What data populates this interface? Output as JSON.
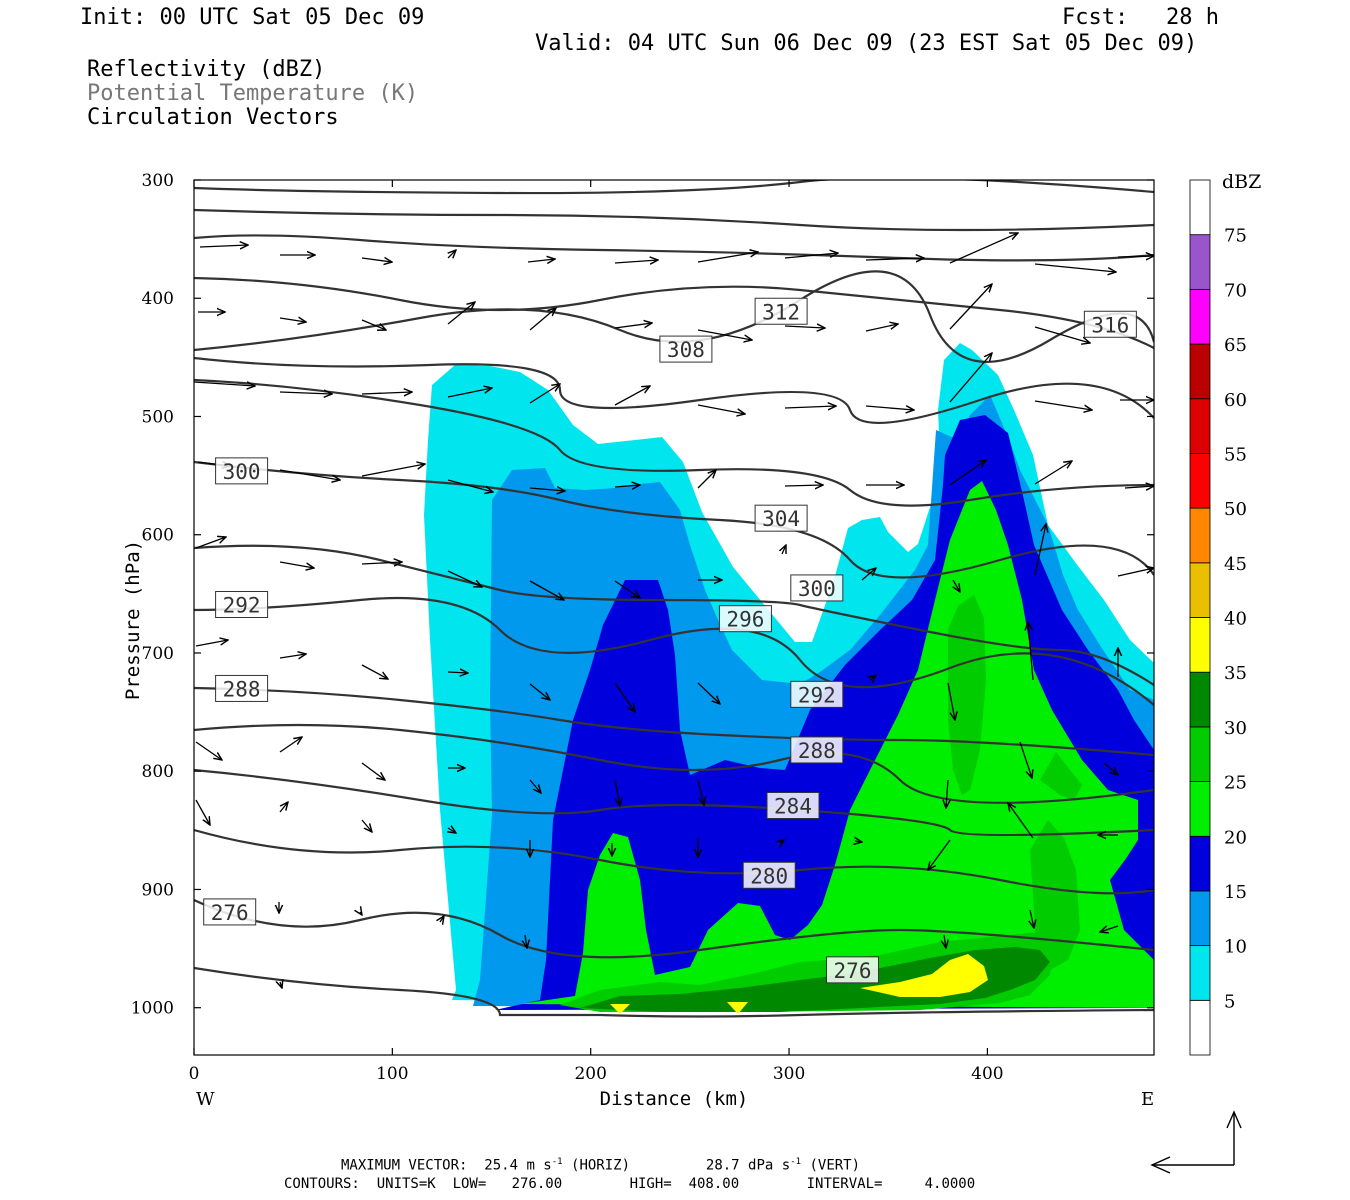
{
  "header": {
    "init": "Init: 00 UTC Sat 05 Dec 09",
    "fcst_label": "Fcst:",
    "fcst_value": "28 h",
    "valid": "Valid: 04 UTC Sun 06 Dec 09 (23 EST Sat 05 Dec 09)",
    "fields": [
      "Reflectivity (dBZ)",
      "Potential Temperature (K)",
      "Circulation Vectors"
    ]
  },
  "footer": {
    "max_vector_label": "MAXIMUM VECTOR:",
    "max_vector_horiz": "25.4 m s",
    "horiz_tag": "(HORIZ)",
    "max_vector_vert": "28.7 dPa s",
    "vert_tag": "(VERT)",
    "exp": "-1",
    "contours_line": "CONTOURS:  UNITS=K  LOW=   276.00        HIGH=  408.00        INTERVAL=     4.0000"
  },
  "chart_data": {
    "type": "heatmap",
    "xlabel": "Distance (km)",
    "ylabel": "Pressure (hPa)",
    "xlim": [
      0,
      484
    ],
    "ylim": [
      1040,
      300
    ],
    "x_ticks": [
      0,
      100,
      200,
      300,
      400
    ],
    "y_ticks": [
      300,
      400,
      500,
      600,
      700,
      800,
      900,
      1000
    ],
    "x_end_labels": {
      "left": "W",
      "right": "E"
    },
    "colorbar": {
      "title": "dBZ",
      "levels": [
        5,
        10,
        15,
        20,
        25,
        30,
        35,
        40,
        45,
        50,
        55,
        60,
        65,
        70,
        75
      ],
      "colors": [
        "#00e5ee",
        "#0099ee",
        "#0000dd",
        "#00ee00",
        "#00cc00",
        "#008800",
        "#ffff00",
        "#e8c000",
        "#ff8800",
        "#ff0000",
        "#dd0000",
        "#bb0000",
        "#ff00ff",
        "#9955cc",
        "#ffffff"
      ]
    },
    "theta_labels": [
      {
        "value": "312",
        "x": 296,
        "p": 411
      },
      {
        "value": "316",
        "x": 462,
        "p": 422
      },
      {
        "value": "308",
        "x": 248,
        "p": 443
      },
      {
        "value": "300",
        "x": 24,
        "p": 546
      },
      {
        "value": "304",
        "x": 296,
        "p": 586
      },
      {
        "value": "300",
        "x": 314,
        "p": 645
      },
      {
        "value": "296",
        "x": 278,
        "p": 671
      },
      {
        "value": "292",
        "x": 24,
        "p": 659
      },
      {
        "value": "288",
        "x": 24,
        "p": 730
      },
      {
        "value": "292",
        "x": 314,
        "p": 735
      },
      {
        "value": "288",
        "x": 314,
        "p": 782
      },
      {
        "value": "284",
        "x": 302,
        "p": 829
      },
      {
        "value": "280",
        "x": 290,
        "p": 888
      },
      {
        "value": "276",
        "x": 18,
        "p": 919
      },
      {
        "value": "276",
        "x": 332,
        "p": 968
      }
    ]
  }
}
